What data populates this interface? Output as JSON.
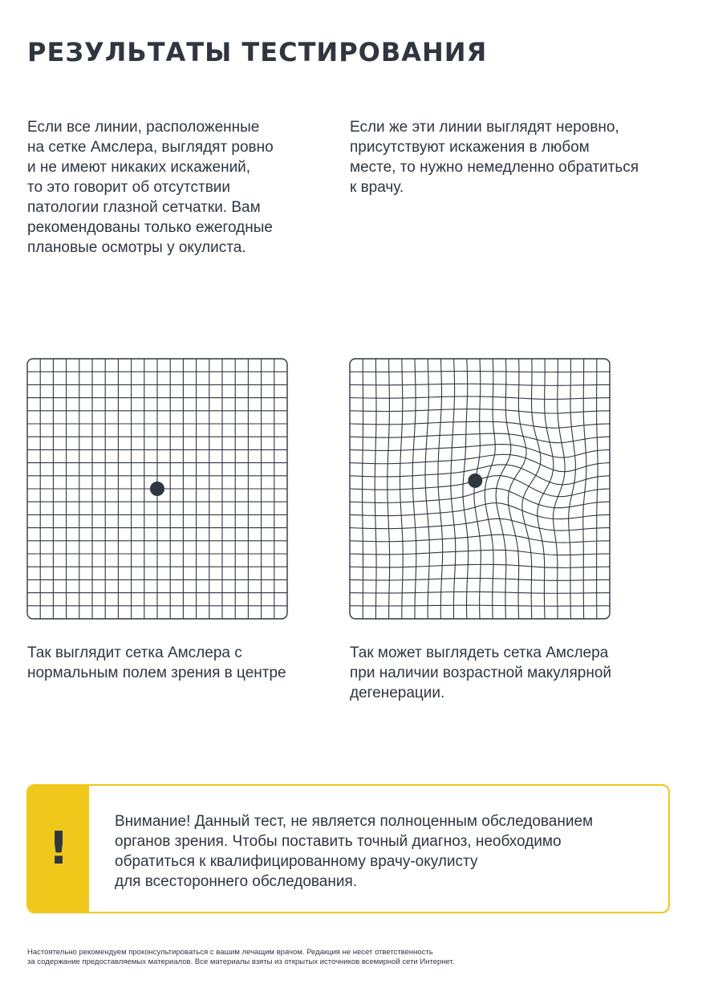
{
  "page": {
    "title": "РЕЗУЛЬТАТЫ ТЕСТИРОВАНИЯ"
  },
  "results": {
    "normal_text": [
      "Если все линии, расположенные",
      "на сетке Амслера, выглядят ровно",
      "и не имеют никаких искажений,",
      "то это говорит об отсутствии",
      "патологии глазной сетчатки. Вам",
      "рекомендованы только ежегодные",
      "плановые осмотры у окулиста."
    ],
    "distorted_text": [
      "Если же эти линии выглядят неровно,",
      "присутствуют искажения в любом",
      "месте, то нужно немедленно обратиться",
      "к врачу."
    ]
  },
  "grids": {
    "cells": 20,
    "line_color": "#2f3640",
    "normal_caption": [
      "Так выглядит сетка Амслера с",
      "нормальным полем зрения в центре"
    ],
    "distorted_caption": [
      "Так может выглядеть сетка Амслера",
      "при наличии возрастной макулярной",
      "дегенерации."
    ]
  },
  "warning": {
    "icon": "exclamation-icon",
    "mark": "!",
    "accent_color": "#f0c81c",
    "lines": [
      "Внимание! Данный тест, не является полноценным обследованием",
      "органов зрения. Чтобы поставить точный диагноз, необходимо",
      "обратиться к квалифицированному врачу-окулисту",
      "для всестороннего обследования."
    ]
  },
  "footnote": {
    "lines": [
      "Настоятельно рекомендуем проконсультироваться с вашим лечащим врачом. Редакция не несет ответственность",
      "за содержание предоставляемых материалов. Все материалы взяты из открытых источников всемирной сети Интернет."
    ]
  }
}
